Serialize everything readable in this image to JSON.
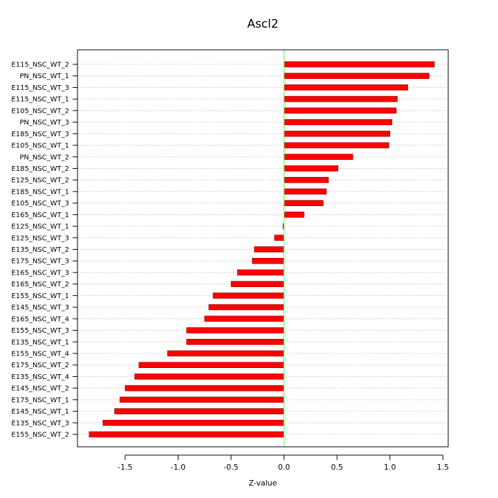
{
  "chart_data": {
    "type": "bar",
    "orientation": "horizontal",
    "title": "Ascl2",
    "xlabel": "Z-value",
    "ylabel": "",
    "xlim": [
      -1.95,
      1.55
    ],
    "xticks": [
      -1.5,
      -1.0,
      -0.5,
      0.0,
      0.5,
      1.0,
      1.5
    ],
    "xtick_labels": [
      "-1.5",
      "-1.0",
      "-0.5",
      "0.0",
      "0.5",
      "1.0",
      "1.5"
    ],
    "grid": "horizontal dashed gridlines at each category",
    "reference_line_x": 0,
    "categories": [
      "E115_NSC_WT_2",
      "PN_NSC_WT_1",
      "E115_NSC_WT_3",
      "E115_NSC_WT_1",
      "E105_NSC_WT_2",
      "PN_NSC_WT_3",
      "E185_NSC_WT_3",
      "E105_NSC_WT_1",
      "PN_NSC_WT_2",
      "E185_NSC_WT_2",
      "E125_NSC_WT_2",
      "E185_NSC_WT_1",
      "E105_NSC_WT_3",
      "E165_NSC_WT_1",
      "E125_NSC_WT_1",
      "E125_NSC_WT_3",
      "E135_NSC_WT_2",
      "E175_NSC_WT_3",
      "E165_NSC_WT_3",
      "E165_NSC_WT_2",
      "E155_NSC_WT_1",
      "E145_NSC_WT_3",
      "E165_NSC_WT_4",
      "E155_NSC_WT_3",
      "E135_NSC_WT_1",
      "E155_NSC_WT_4",
      "E175_NSC_WT_2",
      "E135_NSC_WT_4",
      "E145_NSC_WT_2",
      "E175_NSC_WT_1",
      "E145_NSC_WT_1",
      "E135_NSC_WT_3",
      "E155_NSC_WT_2"
    ],
    "values": [
      1.42,
      1.37,
      1.17,
      1.07,
      1.06,
      1.02,
      1.0,
      0.99,
      0.65,
      0.51,
      0.42,
      0.4,
      0.37,
      0.19,
      -0.01,
      -0.09,
      -0.28,
      -0.3,
      -0.44,
      -0.5,
      -0.67,
      -0.71,
      -0.75,
      -0.92,
      -0.92,
      -1.1,
      -1.37,
      -1.41,
      -1.5,
      -1.55,
      -1.6,
      -1.71,
      -1.84
    ],
    "colors": {
      "bar_fill": "#ff0000",
      "bar_outline": "#8b0000",
      "zero_line": "#66ff66",
      "grid": "#cccccc",
      "axis": "#000000"
    }
  }
}
